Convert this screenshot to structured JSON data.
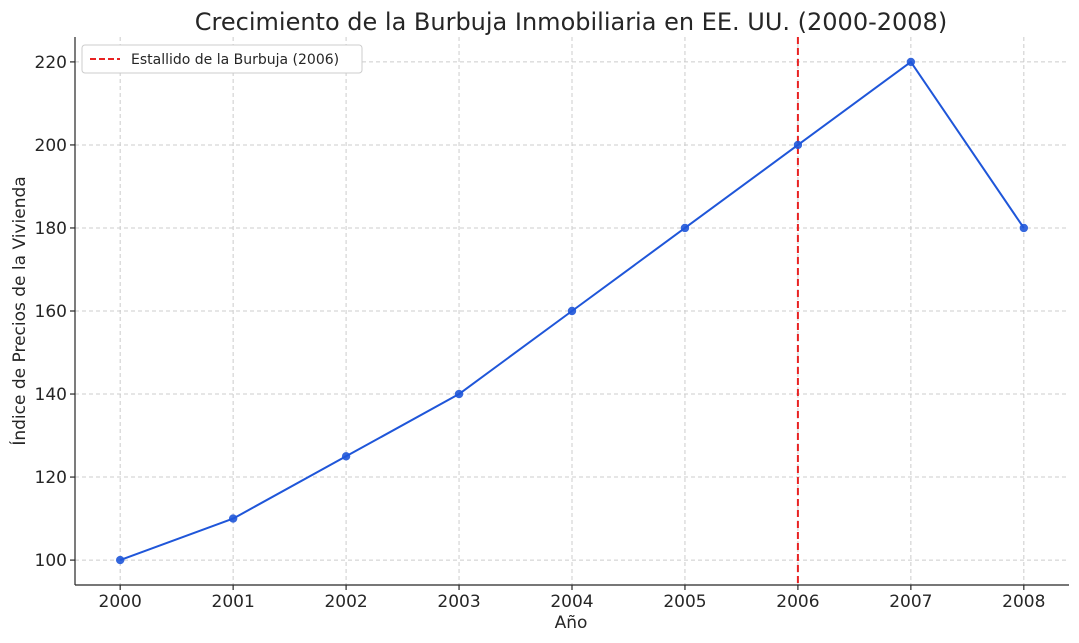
{
  "chart_data": {
    "type": "line",
    "title": "Crecimiento de la Burbuja Inmobiliaria en EE. UU. (2000-2008)",
    "xlabel": "Año",
    "ylabel": "Índice de Precios de la Vivienda",
    "x": [
      2000,
      2001,
      2002,
      2003,
      2004,
      2005,
      2006,
      2007,
      2008
    ],
    "x_tick_labels": [
      "2000",
      "2001",
      "2002",
      "2003",
      "2004",
      "2005",
      "2006",
      "2007",
      "2008"
    ],
    "y_ticks": [
      100,
      120,
      140,
      160,
      180,
      200,
      220
    ],
    "y_tick_labels": [
      "100",
      "120",
      "140",
      "160",
      "180",
      "200",
      "220"
    ],
    "ylim": [
      94,
      226
    ],
    "xlim": [
      1999.6,
      2008.4
    ],
    "grid": true,
    "legend_position": "top-left",
    "series": [
      {
        "values": [
          100,
          110,
          125,
          140,
          160,
          180,
          200,
          220,
          180
        ],
        "color": "#1f56d9"
      }
    ],
    "annotations": [
      {
        "type": "vertical-line",
        "x": 2006,
        "label": "Estallido de la Burbuja (2006)",
        "color": "#e82222",
        "style": "dashed"
      }
    ]
  }
}
